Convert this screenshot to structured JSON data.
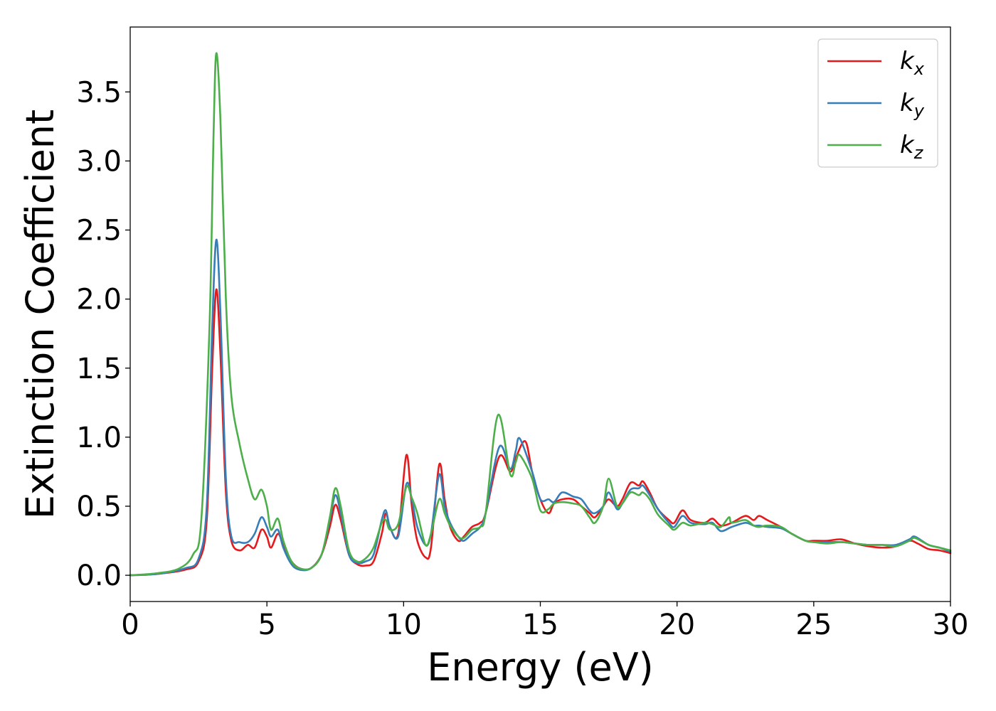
{
  "chart_data": {
    "type": "line",
    "title": "",
    "xlabel": "Energy (eV)",
    "ylabel": "Extinction Coefficient",
    "xlim": [
      0,
      30
    ],
    "ylim": [
      -0.19,
      3.97
    ],
    "x_ticks": [
      0,
      5,
      10,
      15,
      20,
      25,
      30
    ],
    "x_tick_labels": [
      "0",
      "5",
      "10",
      "15",
      "20",
      "25",
      "30"
    ],
    "y_ticks": [
      0.0,
      0.5,
      1.0,
      1.5,
      2.0,
      2.5,
      3.0,
      3.5
    ],
    "y_tick_labels": [
      "0.0",
      "0.5",
      "1.0",
      "1.5",
      "2.0",
      "2.5",
      "3.0",
      "3.5"
    ],
    "grid": false,
    "legend_position": "top-right",
    "series": [
      {
        "name": "kx",
        "label_base": "k",
        "label_sub": "x",
        "color": "#e41a1c",
        "points": [
          [
            0,
            0
          ],
          [
            1,
            0.01
          ],
          [
            2,
            0.04
          ],
          [
            2.5,
            0.1
          ],
          [
            2.8,
            0.4
          ],
          [
            3.0,
            1.5
          ],
          [
            3.15,
            2.07
          ],
          [
            3.3,
            1.6
          ],
          [
            3.5,
            0.6
          ],
          [
            3.7,
            0.25
          ],
          [
            4.0,
            0.18
          ],
          [
            4.3,
            0.22
          ],
          [
            4.55,
            0.2
          ],
          [
            4.8,
            0.33
          ],
          [
            5.0,
            0.28
          ],
          [
            5.15,
            0.2
          ],
          [
            5.4,
            0.3
          ],
          [
            5.6,
            0.22
          ],
          [
            5.9,
            0.1
          ],
          [
            6.2,
            0.05
          ],
          [
            6.6,
            0.05
          ],
          [
            7.0,
            0.15
          ],
          [
            7.3,
            0.35
          ],
          [
            7.5,
            0.51
          ],
          [
            7.7,
            0.4
          ],
          [
            8.0,
            0.15
          ],
          [
            8.3,
            0.08
          ],
          [
            8.6,
            0.07
          ],
          [
            8.9,
            0.1
          ],
          [
            9.2,
            0.3
          ],
          [
            9.35,
            0.45
          ],
          [
            9.5,
            0.35
          ],
          [
            9.8,
            0.3
          ],
          [
            10.1,
            0.87
          ],
          [
            10.3,
            0.5
          ],
          [
            10.5,
            0.25
          ],
          [
            10.8,
            0.13
          ],
          [
            11.0,
            0.2
          ],
          [
            11.3,
            0.8
          ],
          [
            11.5,
            0.55
          ],
          [
            11.7,
            0.35
          ],
          [
            12.0,
            0.25
          ],
          [
            12.2,
            0.28
          ],
          [
            12.5,
            0.35
          ],
          [
            12.8,
            0.38
          ],
          [
            13.0,
            0.45
          ],
          [
            13.5,
            0.86
          ],
          [
            13.9,
            0.75
          ],
          [
            14.1,
            0.85
          ],
          [
            14.45,
            0.97
          ],
          [
            14.7,
            0.75
          ],
          [
            15.0,
            0.55
          ],
          [
            15.3,
            0.45
          ],
          [
            15.5,
            0.52
          ],
          [
            15.8,
            0.55
          ],
          [
            16.2,
            0.55
          ],
          [
            16.5,
            0.5
          ],
          [
            16.8,
            0.45
          ],
          [
            17.0,
            0.42
          ],
          [
            17.3,
            0.5
          ],
          [
            17.5,
            0.55
          ],
          [
            17.8,
            0.5
          ],
          [
            18.0,
            0.55
          ],
          [
            18.3,
            0.67
          ],
          [
            18.6,
            0.65
          ],
          [
            18.75,
            0.68
          ],
          [
            19.0,
            0.6
          ],
          [
            19.3,
            0.48
          ],
          [
            19.7,
            0.4
          ],
          [
            19.9,
            0.38
          ],
          [
            20.2,
            0.47
          ],
          [
            20.5,
            0.4
          ],
          [
            21.0,
            0.38
          ],
          [
            21.3,
            0.41
          ],
          [
            21.6,
            0.36
          ],
          [
            22.0,
            0.38
          ],
          [
            22.5,
            0.43
          ],
          [
            22.8,
            0.4
          ],
          [
            23.0,
            0.43
          ],
          [
            23.3,
            0.4
          ],
          [
            23.8,
            0.35
          ],
          [
            24.2,
            0.3
          ],
          [
            24.7,
            0.25
          ],
          [
            25.0,
            0.25
          ],
          [
            25.5,
            0.25
          ],
          [
            26.0,
            0.26
          ],
          [
            26.5,
            0.23
          ],
          [
            27.0,
            0.21
          ],
          [
            27.5,
            0.2
          ],
          [
            28.0,
            0.21
          ],
          [
            28.5,
            0.25
          ],
          [
            28.8,
            0.23
          ],
          [
            29.2,
            0.19
          ],
          [
            29.6,
            0.18
          ],
          [
            30.0,
            0.16
          ]
        ]
      },
      {
        "name": "ky",
        "label_base": "k",
        "label_sub": "y",
        "color": "#377eb8",
        "points": [
          [
            0,
            0
          ],
          [
            1,
            0.01
          ],
          [
            2,
            0.05
          ],
          [
            2.5,
            0.12
          ],
          [
            2.8,
            0.5
          ],
          [
            3.0,
            1.8
          ],
          [
            3.15,
            2.43
          ],
          [
            3.3,
            1.9
          ],
          [
            3.5,
            0.7
          ],
          [
            3.7,
            0.28
          ],
          [
            4.0,
            0.24
          ],
          [
            4.3,
            0.24
          ],
          [
            4.55,
            0.3
          ],
          [
            4.8,
            0.42
          ],
          [
            5.0,
            0.35
          ],
          [
            5.15,
            0.28
          ],
          [
            5.4,
            0.33
          ],
          [
            5.6,
            0.2
          ],
          [
            5.9,
            0.08
          ],
          [
            6.2,
            0.04
          ],
          [
            6.6,
            0.05
          ],
          [
            7.0,
            0.15
          ],
          [
            7.3,
            0.4
          ],
          [
            7.5,
            0.58
          ],
          [
            7.7,
            0.45
          ],
          [
            8.0,
            0.15
          ],
          [
            8.3,
            0.09
          ],
          [
            8.6,
            0.1
          ],
          [
            8.9,
            0.15
          ],
          [
            9.2,
            0.4
          ],
          [
            9.35,
            0.47
          ],
          [
            9.5,
            0.35
          ],
          [
            9.8,
            0.28
          ],
          [
            10.1,
            0.66
          ],
          [
            10.3,
            0.55
          ],
          [
            10.5,
            0.35
          ],
          [
            10.8,
            0.22
          ],
          [
            11.0,
            0.3
          ],
          [
            11.3,
            0.73
          ],
          [
            11.5,
            0.5
          ],
          [
            11.7,
            0.38
          ],
          [
            12.0,
            0.28
          ],
          [
            12.2,
            0.25
          ],
          [
            12.5,
            0.3
          ],
          [
            12.8,
            0.35
          ],
          [
            13.0,
            0.45
          ],
          [
            13.5,
            0.93
          ],
          [
            13.9,
            0.77
          ],
          [
            14.1,
            0.9
          ],
          [
            14.25,
            0.99
          ],
          [
            14.7,
            0.75
          ],
          [
            15.0,
            0.55
          ],
          [
            15.3,
            0.55
          ],
          [
            15.5,
            0.53
          ],
          [
            15.8,
            0.6
          ],
          [
            16.2,
            0.57
          ],
          [
            16.5,
            0.55
          ],
          [
            16.8,
            0.47
          ],
          [
            17.0,
            0.45
          ],
          [
            17.3,
            0.5
          ],
          [
            17.5,
            0.6
          ],
          [
            17.8,
            0.48
          ],
          [
            18.0,
            0.52
          ],
          [
            18.3,
            0.62
          ],
          [
            18.6,
            0.63
          ],
          [
            18.75,
            0.65
          ],
          [
            19.0,
            0.58
          ],
          [
            19.3,
            0.48
          ],
          [
            19.7,
            0.38
          ],
          [
            19.9,
            0.35
          ],
          [
            20.2,
            0.43
          ],
          [
            20.5,
            0.38
          ],
          [
            21.0,
            0.37
          ],
          [
            21.3,
            0.38
          ],
          [
            21.6,
            0.32
          ],
          [
            22.0,
            0.35
          ],
          [
            22.5,
            0.38
          ],
          [
            22.8,
            0.36
          ],
          [
            23.0,
            0.36
          ],
          [
            23.3,
            0.35
          ],
          [
            23.8,
            0.34
          ],
          [
            24.2,
            0.3
          ],
          [
            24.7,
            0.25
          ],
          [
            25.0,
            0.24
          ],
          [
            25.5,
            0.24
          ],
          [
            26.0,
            0.24
          ],
          [
            26.5,
            0.23
          ],
          [
            27.0,
            0.22
          ],
          [
            27.5,
            0.22
          ],
          [
            28.0,
            0.22
          ],
          [
            28.5,
            0.26
          ],
          [
            28.7,
            0.28
          ],
          [
            29.2,
            0.22
          ],
          [
            29.6,
            0.2
          ],
          [
            30.0,
            0.17
          ]
        ]
      },
      {
        "name": "kz",
        "label_base": "k",
        "label_sub": "z",
        "color": "#4daf4a",
        "points": [
          [
            0,
            0
          ],
          [
            1,
            0.015
          ],
          [
            1.8,
            0.05
          ],
          [
            2.3,
            0.15
          ],
          [
            2.6,
            0.4
          ],
          [
            2.9,
            1.8
          ],
          [
            3.05,
            3.2
          ],
          [
            3.15,
            3.78
          ],
          [
            3.3,
            3.3
          ],
          [
            3.5,
            2.0
          ],
          [
            3.7,
            1.3
          ],
          [
            4.0,
            0.95
          ],
          [
            4.3,
            0.7
          ],
          [
            4.55,
            0.55
          ],
          [
            4.8,
            0.62
          ],
          [
            5.0,
            0.5
          ],
          [
            5.15,
            0.33
          ],
          [
            5.4,
            0.41
          ],
          [
            5.6,
            0.25
          ],
          [
            5.9,
            0.1
          ],
          [
            6.2,
            0.05
          ],
          [
            6.6,
            0.05
          ],
          [
            7.0,
            0.15
          ],
          [
            7.3,
            0.42
          ],
          [
            7.5,
            0.63
          ],
          [
            7.7,
            0.5
          ],
          [
            8.0,
            0.18
          ],
          [
            8.3,
            0.1
          ],
          [
            8.6,
            0.12
          ],
          [
            8.9,
            0.2
          ],
          [
            9.2,
            0.38
          ],
          [
            9.35,
            0.4
          ],
          [
            9.5,
            0.33
          ],
          [
            9.8,
            0.37
          ],
          [
            10.1,
            0.64
          ],
          [
            10.3,
            0.56
          ],
          [
            10.5,
            0.45
          ],
          [
            10.8,
            0.22
          ],
          [
            11.0,
            0.3
          ],
          [
            11.3,
            0.55
          ],
          [
            11.5,
            0.45
          ],
          [
            11.7,
            0.36
          ],
          [
            12.0,
            0.28
          ],
          [
            12.2,
            0.27
          ],
          [
            12.5,
            0.33
          ],
          [
            12.8,
            0.35
          ],
          [
            13.0,
            0.45
          ],
          [
            13.45,
            1.16
          ],
          [
            13.9,
            0.73
          ],
          [
            14.1,
            0.82
          ],
          [
            14.25,
            0.87
          ],
          [
            14.7,
            0.7
          ],
          [
            15.0,
            0.47
          ],
          [
            15.3,
            0.48
          ],
          [
            15.5,
            0.52
          ],
          [
            15.8,
            0.53
          ],
          [
            16.2,
            0.52
          ],
          [
            16.5,
            0.5
          ],
          [
            16.8,
            0.42
          ],
          [
            17.0,
            0.38
          ],
          [
            17.3,
            0.5
          ],
          [
            17.5,
            0.7
          ],
          [
            17.8,
            0.5
          ],
          [
            18.0,
            0.52
          ],
          [
            18.3,
            0.6
          ],
          [
            18.6,
            0.58
          ],
          [
            18.75,
            0.6
          ],
          [
            19.0,
            0.55
          ],
          [
            19.3,
            0.44
          ],
          [
            19.7,
            0.36
          ],
          [
            19.9,
            0.33
          ],
          [
            20.2,
            0.38
          ],
          [
            20.5,
            0.36
          ],
          [
            21.0,
            0.38
          ],
          [
            21.3,
            0.37
          ],
          [
            21.6,
            0.35
          ],
          [
            21.9,
            0.42
          ],
          [
            22.0,
            0.38
          ],
          [
            22.5,
            0.4
          ],
          [
            22.8,
            0.36
          ],
          [
            23.0,
            0.35
          ],
          [
            23.3,
            0.36
          ],
          [
            23.8,
            0.35
          ],
          [
            24.2,
            0.3
          ],
          [
            24.7,
            0.25
          ],
          [
            25.0,
            0.24
          ],
          [
            25.5,
            0.23
          ],
          [
            26.0,
            0.24
          ],
          [
            26.5,
            0.23
          ],
          [
            27.0,
            0.22
          ],
          [
            27.5,
            0.22
          ],
          [
            28.0,
            0.21
          ],
          [
            28.5,
            0.25
          ],
          [
            28.7,
            0.27
          ],
          [
            29.2,
            0.22
          ],
          [
            29.6,
            0.2
          ],
          [
            30.0,
            0.18
          ]
        ]
      }
    ]
  }
}
